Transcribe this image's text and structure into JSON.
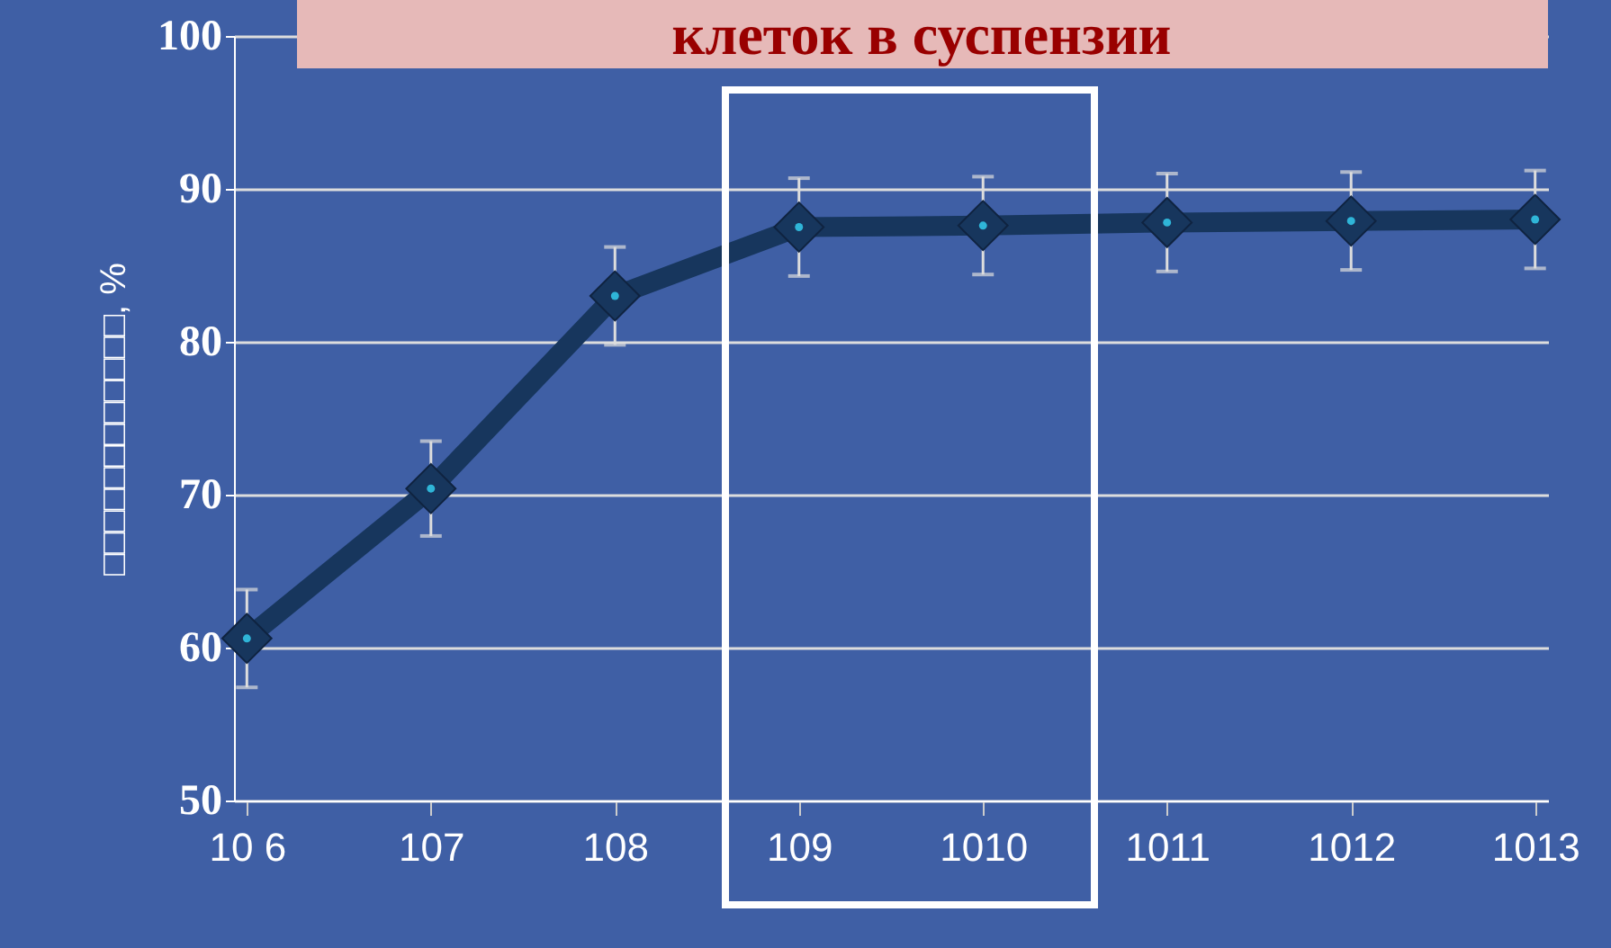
{
  "chart_data": {
    "type": "line",
    "title": "клеток в суспензии",
    "ylabel": "□□□□□□□□□□□□, %",
    "categories": [
      "10 6",
      "107",
      "108",
      "109",
      "1010",
      "1011",
      "1012",
      "1013"
    ],
    "series": [
      {
        "color": "#17365d",
        "values": [
          60.6,
          70.4,
          83.0,
          87.5,
          87.6,
          87.8,
          87.9,
          88.0
        ],
        "errors": [
          3.2,
          3.1,
          3.2,
          3.2,
          3.2,
          3.2,
          3.2,
          3.2
        ]
      }
    ],
    "ylim": [
      50,
      100
    ],
    "yticks": [
      50,
      60,
      70,
      80,
      90,
      100
    ],
    "grid": "y",
    "marker": "diamond",
    "line_style": "solid",
    "legend": false
  }
}
